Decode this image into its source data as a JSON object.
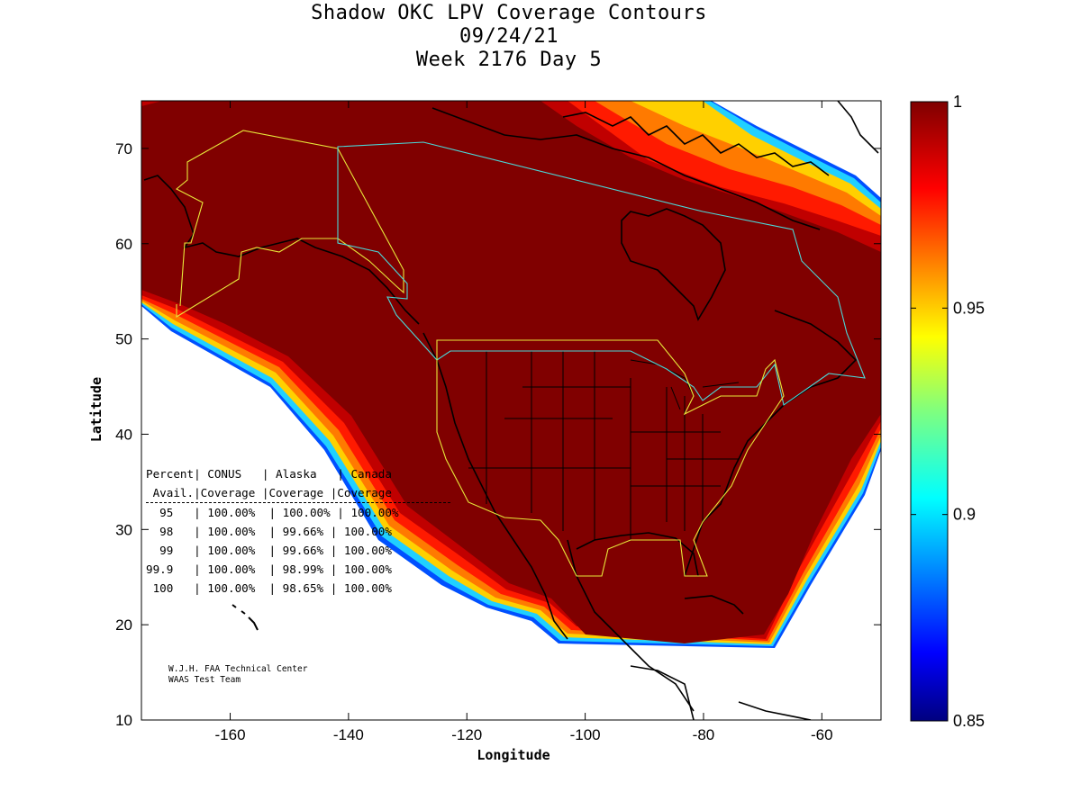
{
  "title": {
    "line1": "Shadow OKC LPV Coverage Contours",
    "line2": "09/24/21",
    "line3": "Week 2176 Day 5"
  },
  "axes": {
    "xlabel": "Longitude",
    "ylabel": "Latitude",
    "xlim": [
      -175,
      -50
    ],
    "ylim": [
      10,
      75
    ],
    "xticks": [
      "-160",
      "-140",
      "-120",
      "-100",
      "-80",
      "-60"
    ],
    "xtick_values": [
      -160,
      -140,
      -120,
      -100,
      -80,
      -60
    ],
    "yticks": [
      "10",
      "20",
      "30",
      "40",
      "50",
      "60",
      "70"
    ],
    "ytick_values": [
      10,
      20,
      30,
      40,
      50,
      60,
      70
    ]
  },
  "colorbar": {
    "labels": [
      "1",
      "0.95",
      "0.9",
      "0.85"
    ],
    "values": [
      1.0,
      0.95,
      0.9,
      0.85
    ],
    "colormap": "jet"
  },
  "colors": {
    "coverage_full": "#800000",
    "alaska_boundary": "#e8e83a",
    "canada_boundary": "#4ad8d8",
    "conus_boundary": "#e8e83a",
    "coast": "#000000"
  },
  "stats_table": {
    "header1": "Percent| CONUS   | Alaska   | Canada",
    "header2": " Avail.|Coverage |Coverage |Coverage",
    "rows": [
      "  95   | 100.00%  | 100.00% | 100.00%",
      "  98   | 100.00%  | 99.66% | 100.00%",
      "  99   | 100.00%  | 99.66% | 100.00%",
      "99.9   | 100.00%  | 98.99% | 100.00%",
      " 100   | 100.00%  | 98.65% | 100.00%"
    ]
  },
  "credits": {
    "line1": "W.J.H. FAA Technical Center",
    "line2": "WAAS Test Team"
  }
}
